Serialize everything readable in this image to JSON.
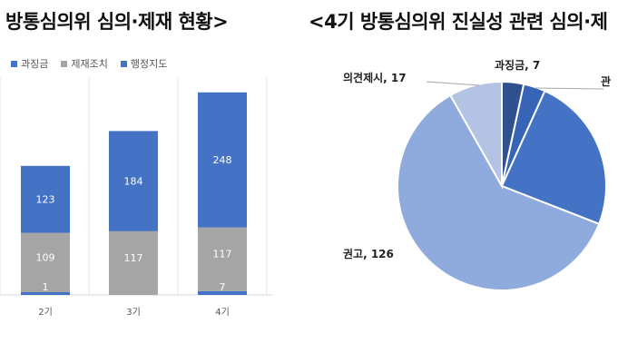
{
  "colors": {
    "fine": "#4472c4",
    "measure": "#a5a5a5",
    "guidance": "#4472c4"
  },
  "titles": {
    "left": "방통심의위 심의·제재 현황>",
    "right": "<4기 방통심의위 진실성 관련 심의·제"
  },
  "chart_data": [
    {
      "type": "bar",
      "stacked": true,
      "categories": [
        "2기",
        "3기",
        "4기"
      ],
      "series": [
        {
          "name": "과징금",
          "values": [
            1,
            0,
            7
          ],
          "color": "#4472c4"
        },
        {
          "name": "제재조치",
          "values": [
            109,
            117,
            117
          ],
          "color": "#a5a5a5"
        },
        {
          "name": "행정지도",
          "values": [
            123,
            184,
            248
          ],
          "color": "#4472c4"
        }
      ],
      "grid": true,
      "legend": "top-left"
    },
    {
      "type": "pie",
      "slices": [
        {
          "label": "과징금",
          "value": 7,
          "text": "과징금, 7",
          "color": "#2f528f"
        },
        {
          "label": "관",
          "value": 7,
          "text": "관",
          "color": "#3864b8"
        },
        {
          "label": "",
          "value": 50,
          "text": "",
          "color": "#4472c4"
        },
        {
          "label": "권고",
          "value": 126,
          "text": "권고, 126",
          "color": "#8faadc"
        },
        {
          "label": "의견제시",
          "value": 17,
          "text": "의견제시, 17",
          "color": "#b4c3e3"
        }
      ]
    }
  ]
}
